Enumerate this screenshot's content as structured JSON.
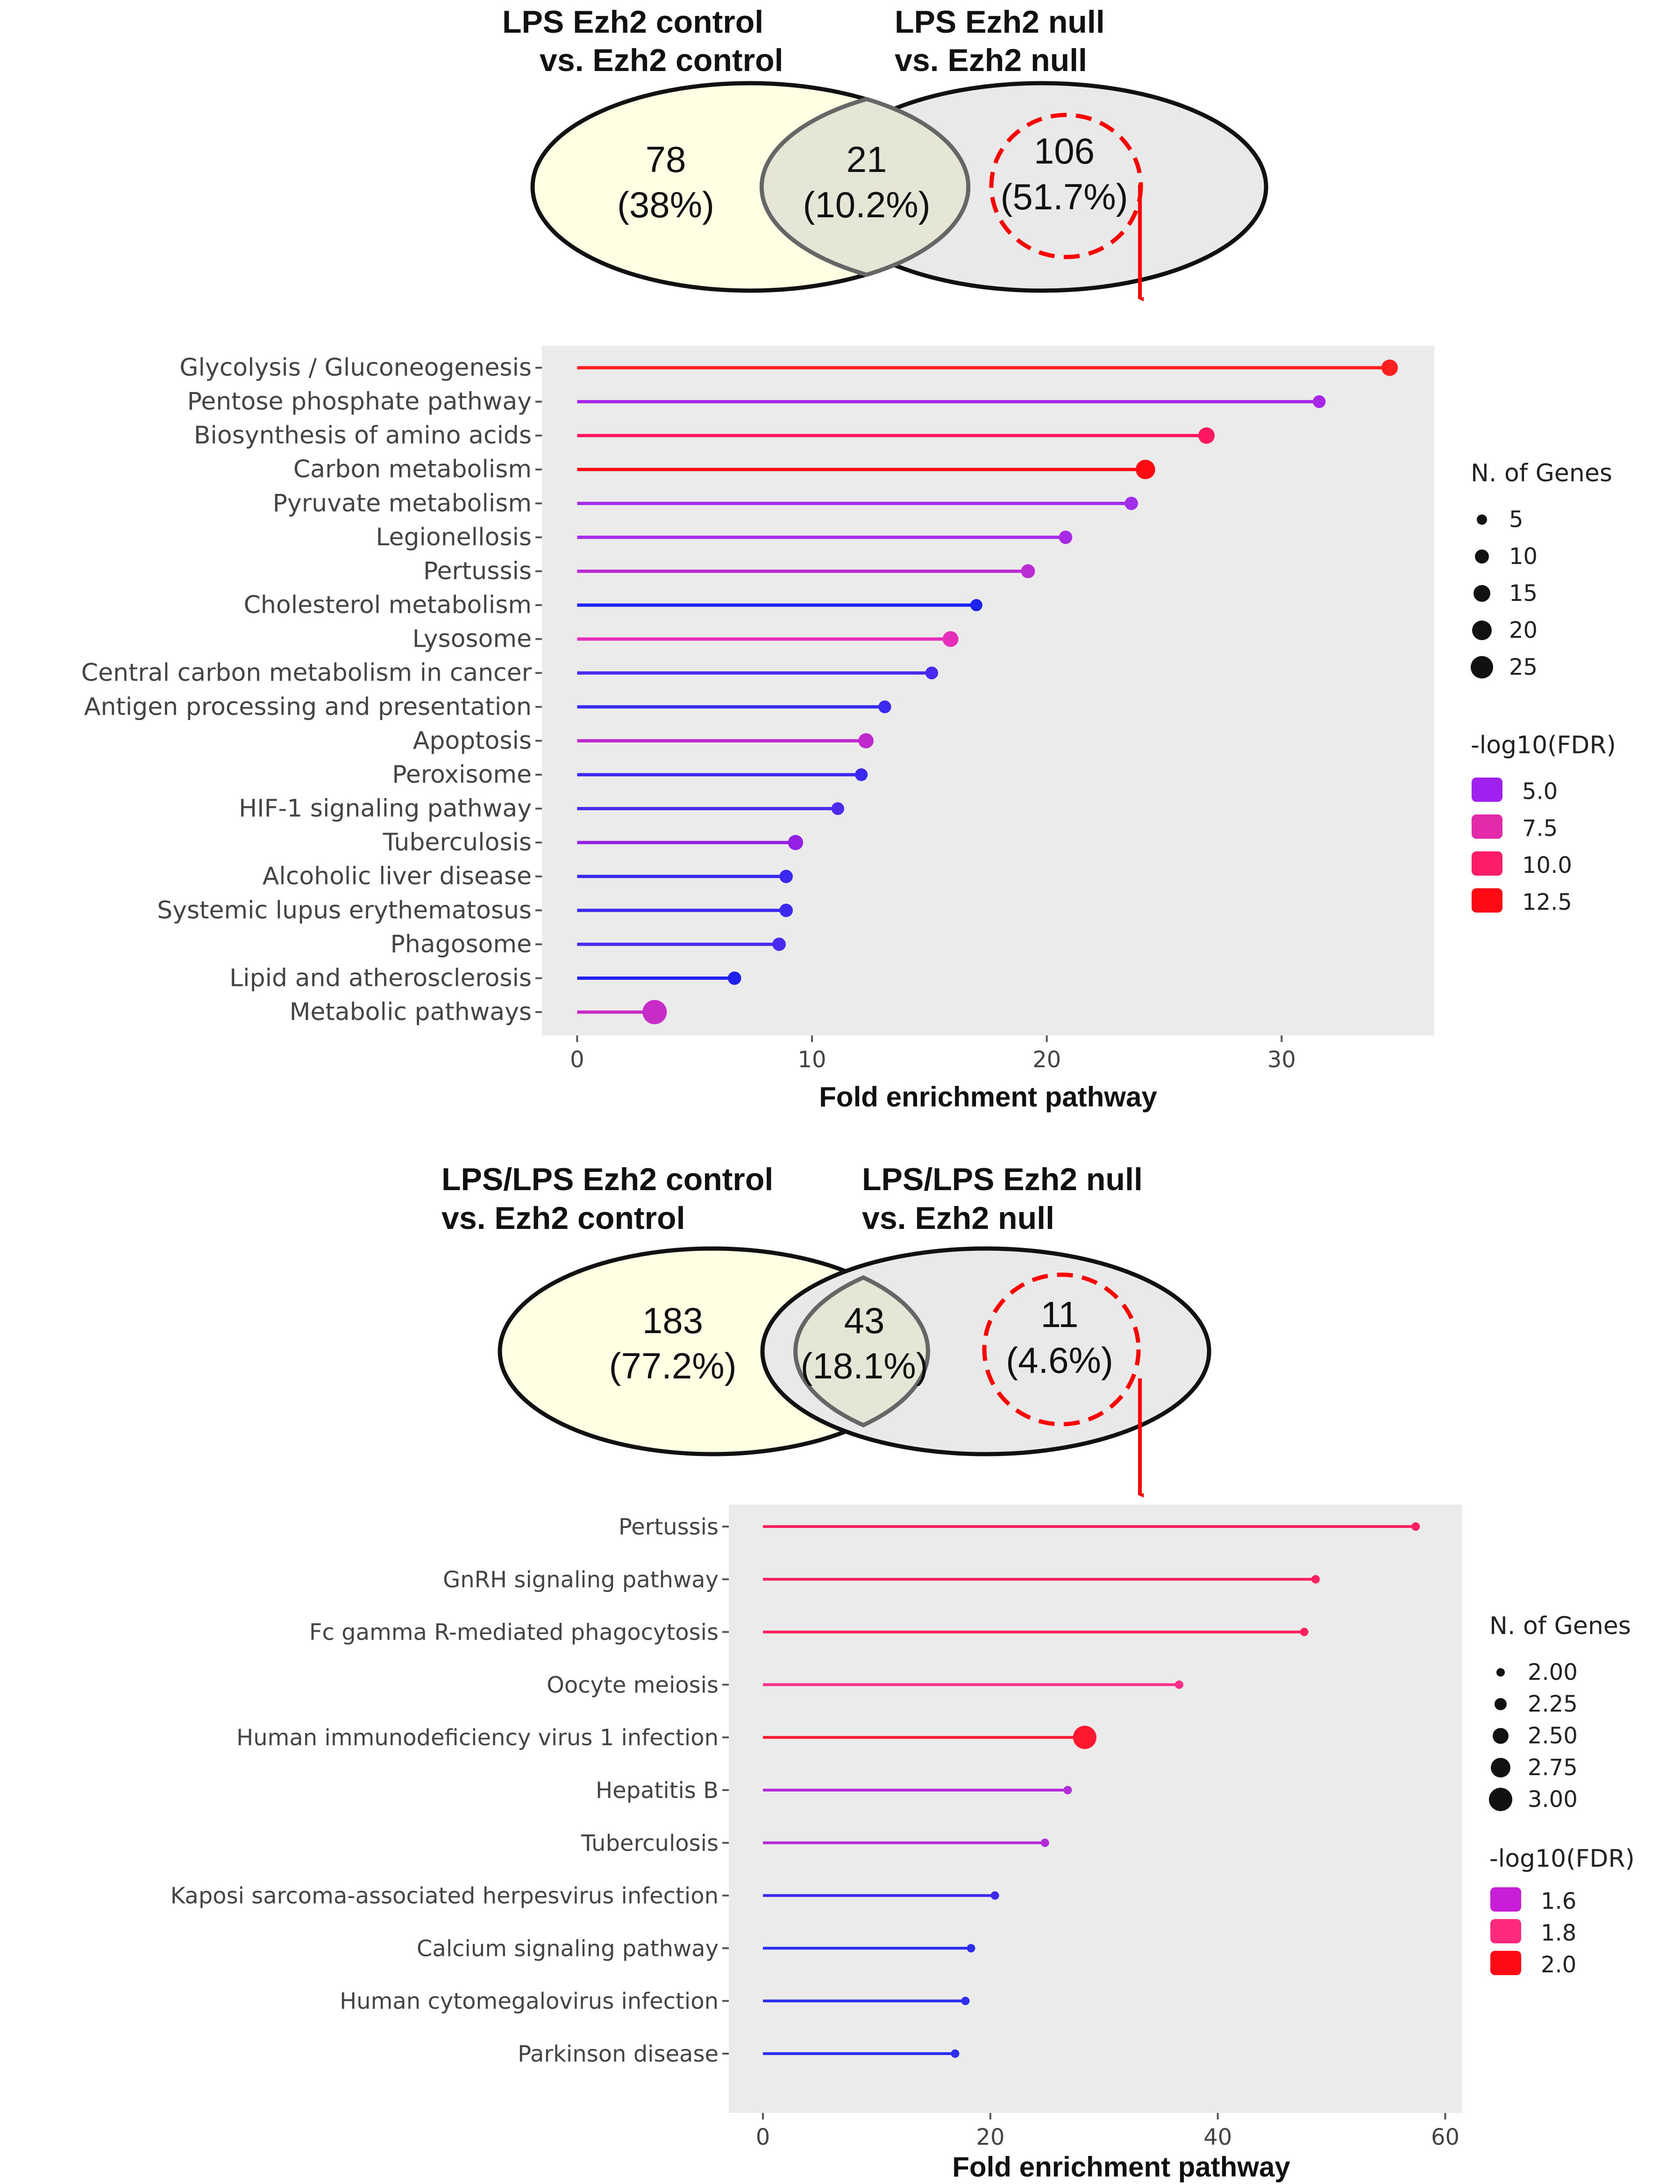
{
  "venn": [
    {
      "left_title": [
        "LPS Ezh2 control",
        "vs. Ezh2 control"
      ],
      "right_title": [
        "LPS Ezh2 null",
        "vs. Ezh2 null"
      ],
      "left_count": "78",
      "left_pct": "(38%)",
      "overlap_count": "21",
      "overlap_pct": "(10.2%)",
      "right_count": "106",
      "right_pct": "(51.7%)",
      "colors": {
        "left": "#FFFFE3",
        "right": "#E9E9E9",
        "overlap": "#E6E6D7",
        "highlight": "#FF0000"
      }
    },
    {
      "left_title": [
        "LPS/LPS Ezh2 control",
        "vs. Ezh2 control"
      ],
      "right_title": [
        "LPS/LPS Ezh2 null",
        "vs. Ezh2 null"
      ],
      "left_count": "183",
      "left_pct": "(77.2%)",
      "overlap_count": "43",
      "overlap_pct": "(18.1%)",
      "right_count": "11",
      "right_pct": "(4.6%)",
      "colors": {
        "left": "#FFFFE3",
        "right": "#E9E9E9",
        "overlap": "#E6E6D7",
        "highlight": "#FF0000"
      }
    }
  ],
  "chart_data": [
    {
      "type": "lollipop",
      "xlabel": "Fold enrichment pathway",
      "xlim": [
        -1.5,
        36.5
      ],
      "xticks": [
        0,
        10,
        20,
        30
      ],
      "grid": false,
      "panel_bg": "#EBEBEB",
      "categories": [
        "Glycolysis / Gluconeogenesis",
        "Pentose phosphate pathway",
        "Biosynthesis of amino acids",
        "Carbon metabolism",
        "Pyruvate metabolism",
        "Legionellosis",
        "Pertussis",
        "Cholesterol metabolism",
        "Lysosome",
        "Central carbon metabolism in cancer",
        "Antigen processing and presentation",
        "Apoptosis",
        "Peroxisome",
        "HIF-1 signaling pathway",
        "Tuberculosis",
        "Alcoholic liver disease",
        "Systemic lupus erythematosus",
        "Phagosome",
        "Lipid and atherosclerosis",
        "Metabolic pathways"
      ],
      "values": [
        34.6,
        31.6,
        26.8,
        24.2,
        23.6,
        20.8,
        19.2,
        17.0,
        15.9,
        15.1,
        13.1,
        12.3,
        12.1,
        11.1,
        9.3,
        8.9,
        8.9,
        8.6,
        6.7,
        3.3
      ],
      "genes": [
        12,
        6,
        12,
        17,
        7,
        7,
        8,
        5,
        11,
        6,
        6,
        10,
        6,
        6,
        10,
        7,
        7,
        7,
        7,
        25
      ],
      "fdr": [
        12.5,
        6.0,
        10.0,
        12.5,
        6.0,
        5.5,
        6.0,
        3.0,
        8.0,
        4.0,
        3.5,
        6.5,
        3.5,
        4.0,
        5.0,
        3.5,
        3.5,
        3.5,
        2.5,
        5.5
      ],
      "colors": [
        "#FF2020",
        "#A826E8",
        "#FF1860",
        "#FF0A10",
        "#A22EEA",
        "#A72AE6",
        "#BB2DD2",
        "#1E22F0",
        "#E62EB8",
        "#4A28EE",
        "#3A2AF0",
        "#BF28CC",
        "#3A2AF0",
        "#4E2AEC",
        "#9420E6",
        "#3A2AF0",
        "#3A2AF0",
        "#4A2AEE",
        "#2020EE",
        "#C72CC8"
      ],
      "legend_size": {
        "title": "N. of Genes",
        "labels": [
          "5",
          "10",
          "15",
          "20",
          "25"
        ]
      },
      "legend_color": {
        "title": "-log10(FDR)",
        "labels": [
          "5.0",
          "7.5",
          "10.0",
          "12.5"
        ],
        "colors": [
          "#A020F0",
          "#E22AAA",
          "#FF1C66",
          "#FF0A14"
        ]
      }
    },
    {
      "type": "lollipop",
      "xlabel": "Fold enrichment pathway",
      "xlim": [
        -3,
        61.5
      ],
      "xticks": [
        0,
        20,
        40,
        60
      ],
      "grid": false,
      "panel_bg": "#EBEBEB",
      "categories": [
        "Pertussis",
        "GnRH signaling pathway",
        "Fc gamma R-mediated phagocytosis",
        "Oocyte meiosis",
        "Human immunodeficiency virus 1 infection",
        "Hepatitis B",
        "Tuberculosis",
        "Kaposi sarcoma-associated herpesvirus infection",
        "Calcium signaling pathway",
        "Human cytomegalovirus infection",
        "Parkinson disease"
      ],
      "values": [
        57.4,
        48.6,
        47.6,
        36.6,
        28.3,
        26.8,
        24.8,
        20.4,
        18.3,
        17.8,
        16.9
      ],
      "genes": [
        2,
        2,
        2,
        2,
        3,
        2,
        2,
        2,
        2,
        2,
        2
      ],
      "fdr": [
        1.85,
        1.85,
        1.85,
        1.8,
        2.0,
        1.6,
        1.6,
        1.5,
        1.45,
        1.45,
        1.45
      ],
      "colors": [
        "#FF2060",
        "#FF2060",
        "#FF2060",
        "#FF2C8A",
        "#FF1830",
        "#B22CDA",
        "#B22CDA",
        "#3C2AEE",
        "#2E2EF0",
        "#2E2EF0",
        "#2E2EF0"
      ],
      "legend_size": {
        "title": "N. of Genes",
        "labels": [
          "2.00",
          "2.25",
          "2.50",
          "2.75",
          "3.00"
        ]
      },
      "legend_color": {
        "title": "-log10(FDR)",
        "labels": [
          "1.6",
          "1.8",
          "2.0"
        ],
        "colors": [
          "#C81ED8",
          "#FF2A80",
          "#FF0A14"
        ]
      }
    }
  ]
}
